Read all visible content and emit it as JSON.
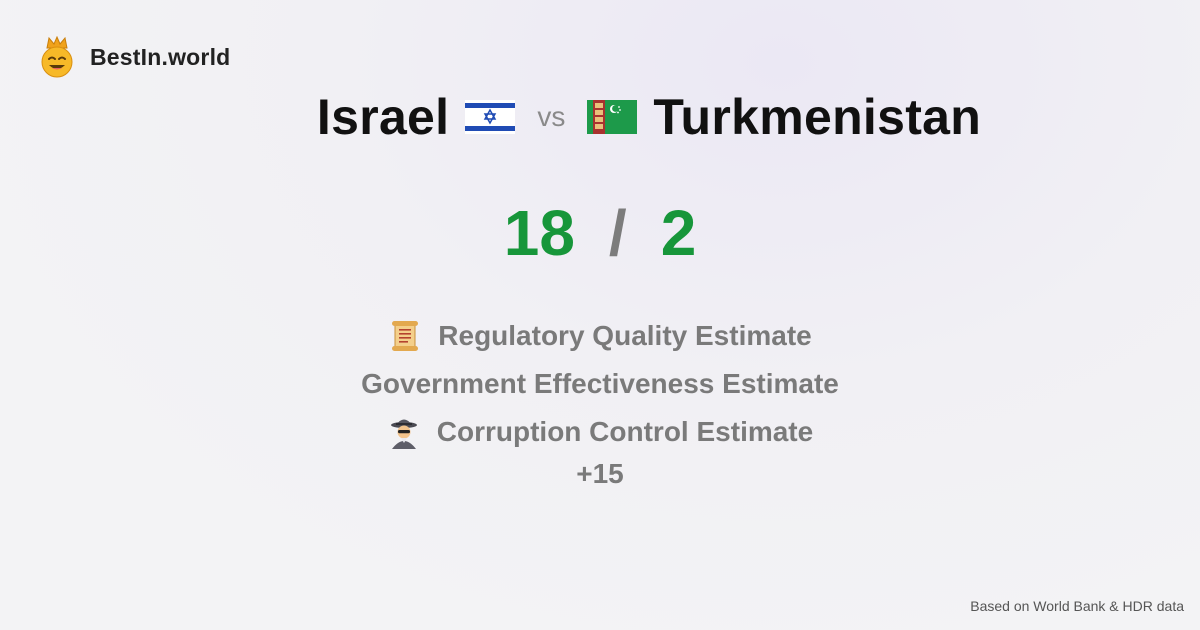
{
  "brand": {
    "name": "BestIn.world",
    "logo_icon": "crowned-smiley-icon"
  },
  "comparison": {
    "left": {
      "name": "Israel",
      "flag_icon": "israel-flag-icon",
      "score": "18"
    },
    "vs_label": "vs",
    "right": {
      "name": "Turkmenistan",
      "flag_icon": "turkmenistan-flag-icon",
      "score": "2"
    },
    "separator": "/"
  },
  "metrics": [
    {
      "label": "Regulatory Quality Estimate",
      "icon": "scroll-icon"
    },
    {
      "label": "Government Effectiveness Estimate",
      "icon": ""
    },
    {
      "label": "Corruption Control Estimate",
      "icon": "detective-icon"
    }
  ],
  "more_label": "+15",
  "footer": {
    "source": "Based on World Bank & HDR data"
  },
  "colors": {
    "score_green": "#17963a",
    "muted_gray": "#7a7a7a",
    "background": "#f1f0f4"
  }
}
